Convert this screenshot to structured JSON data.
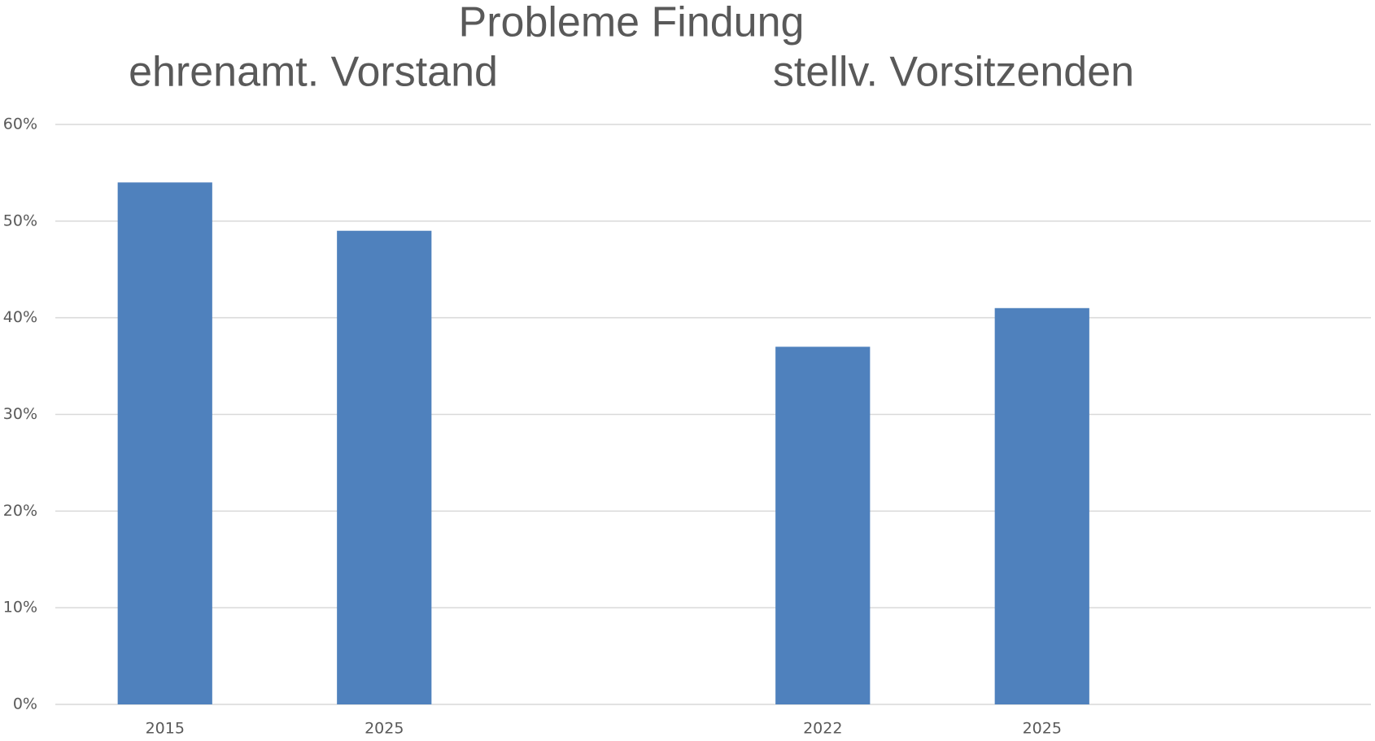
{
  "chart_data": {
    "type": "bar",
    "title": "Probleme Findung",
    "annotations": [
      "ehrenamt. Vorstand",
      "stellv. Vorsitzenden"
    ],
    "categories": [
      "2015",
      "2025",
      null,
      "2022",
      "2025",
      null
    ],
    "values": [
      54,
      49,
      null,
      37,
      41,
      null
    ],
    "color": "#4f81bd",
    "ylim": [
      0,
      60
    ],
    "yticks": [
      {
        "value": 0,
        "label": "0%"
      },
      {
        "value": 10,
        "label": "10%"
      },
      {
        "value": 20,
        "label": "20%"
      },
      {
        "value": 30,
        "label": "30%"
      },
      {
        "value": 40,
        "label": "40%"
      },
      {
        "value": 50,
        "label": "50%"
      },
      {
        "value": 60,
        "label": "60%"
      }
    ],
    "grid": true
  }
}
